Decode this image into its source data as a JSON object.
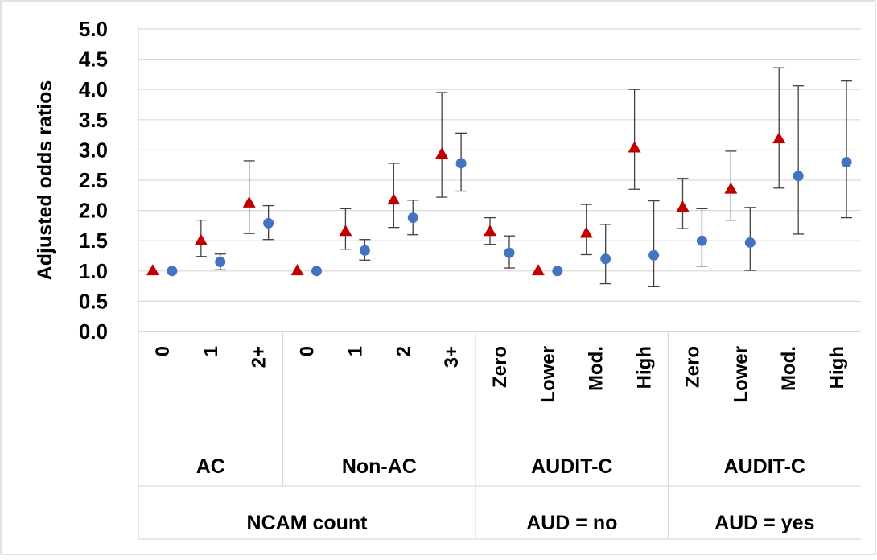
{
  "chart_data": {
    "type": "scatter",
    "ylabel": "Adjusted odds ratios",
    "ylim": [
      0,
      5
    ],
    "yticks": [
      "0.0",
      "0.5",
      "1.0",
      "1.5",
      "2.0",
      "2.5",
      "3.0",
      "3.5",
      "4.0",
      "4.5",
      "5.0"
    ],
    "grid": "horizontal",
    "categories": [
      "0",
      "1",
      "2+",
      "0",
      "1",
      "2",
      "3+",
      "Zero",
      "Lower",
      "Mod.",
      "High",
      "Zero",
      "Lower",
      "Mod.",
      "High"
    ],
    "groups_level1": [
      {
        "label": "AC",
        "start": 0,
        "end": 3
      },
      {
        "label": "Non-AC",
        "start": 3,
        "end": 7
      },
      {
        "label": "AUDIT-C",
        "start": 7,
        "end": 11
      },
      {
        "label": "AUDIT-C",
        "start": 11,
        "end": 15
      }
    ],
    "groups_level2": [
      {
        "label": "NCAM count",
        "start": 0,
        "end": 7
      },
      {
        "label": "AUD = no",
        "start": 7,
        "end": 11
      },
      {
        "label": "AUD = yes",
        "start": 11,
        "end": 15
      }
    ],
    "series": [
      {
        "marker": "triangle",
        "color": "#c00000",
        "values": [
          1.0,
          1.5,
          2.12,
          1.0,
          1.65,
          2.17,
          2.93,
          1.65,
          1.0,
          1.62,
          3.03,
          2.05,
          2.35,
          3.18,
          null
        ],
        "lower": [
          null,
          1.24,
          1.62,
          null,
          1.36,
          1.72,
          2.22,
          1.44,
          null,
          1.27,
          2.35,
          1.7,
          1.84,
          2.37,
          null
        ],
        "upper": [
          null,
          1.84,
          2.82,
          null,
          2.03,
          2.78,
          3.95,
          1.88,
          null,
          2.1,
          4.0,
          2.53,
          2.98,
          4.36,
          null
        ]
      },
      {
        "marker": "circle",
        "color": "#4472c4",
        "values": [
          1.0,
          1.15,
          1.79,
          1.0,
          1.34,
          1.88,
          2.78,
          1.3,
          1.0,
          1.2,
          1.26,
          1.5,
          1.47,
          2.57,
          2.8
        ],
        "lower": [
          null,
          1.02,
          1.52,
          null,
          1.18,
          1.6,
          2.32,
          1.05,
          null,
          0.79,
          0.74,
          1.08,
          1.01,
          1.61,
          1.88
        ],
        "upper": [
          null,
          1.28,
          2.08,
          null,
          1.52,
          2.17,
          3.28,
          1.58,
          null,
          1.77,
          2.16,
          2.03,
          2.05,
          4.06,
          4.14
        ]
      }
    ]
  }
}
